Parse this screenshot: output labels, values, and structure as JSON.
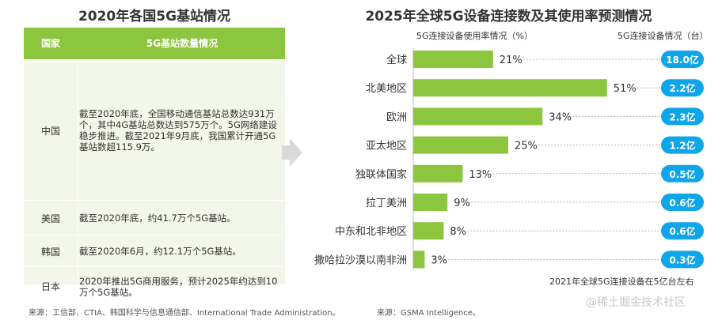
{
  "left": {
    "title": "2020年各国5G基站情况",
    "header": {
      "country": "国家",
      "info": "5G基站数量情况"
    },
    "rows": [
      {
        "country": "中国",
        "text": "截至2020年底，全国移动通信基站总数达931万个，其中4G基站总数达到575万个。5G网络建设稳步推进。截至2021年9月底，我国累计开通5G基站数超115.9万。"
      },
      {
        "country": "美国",
        "text": "截至2020年底，约41.7万个5G基站。"
      },
      {
        "country": "韩国",
        "text": "截至2020年6月，约12.1万个5G基站。"
      },
      {
        "country": "日本",
        "text": "2020年推出5G商用服务，预计2025年约达到10万个5G基站。"
      }
    ],
    "source": "来源：工信部、CTIA、韩国科学与信息通信部、International Trade Administration。"
  },
  "right": {
    "title": "2025年全球5G设备连接数及其使用率预测情况",
    "usage_header": "5G连接设备使用率情况（%）",
    "devices_header": "5G连接设备情况（台）",
    "footnote": "2021年全球5G连接设备在5亿台左右",
    "source": "来源：GSMA Intelligence。"
  },
  "watermark": "@稀土掘金技术社区",
  "colors": {
    "bar": "#8cc63f",
    "pill": "#0ea5e9",
    "header": "#8cc63f",
    "table_bg": "#f3f6ea"
  },
  "chart_data": {
    "type": "bar",
    "orientation": "horizontal",
    "categories": [
      "全球",
      "北美地区",
      "欧洲",
      "亚太地区",
      "独联体国家",
      "拉丁美洲",
      "中东和北非地区",
      "撒哈拉沙漠以南非洲"
    ],
    "series": [
      {
        "name": "5G连接设备使用率情况（%）",
        "values": [
          21,
          51,
          34,
          25,
          13,
          9,
          8,
          3
        ],
        "labels": [
          "21%",
          "51%",
          "34%",
          "25%",
          "13%",
          "9%",
          "8%",
          "3%"
        ]
      },
      {
        "name": "5G连接设备情况（台）",
        "values": [
          18.0,
          2.2,
          2.3,
          1.2,
          0.5,
          0.6,
          0.6,
          0.3
        ],
        "labels": [
          "18.0亿",
          "2.2亿",
          "2.3亿",
          "1.2亿",
          "0.5亿",
          "0.6亿",
          "0.6亿",
          "0.3亿"
        ]
      }
    ],
    "xlim": [
      0,
      100
    ]
  }
}
